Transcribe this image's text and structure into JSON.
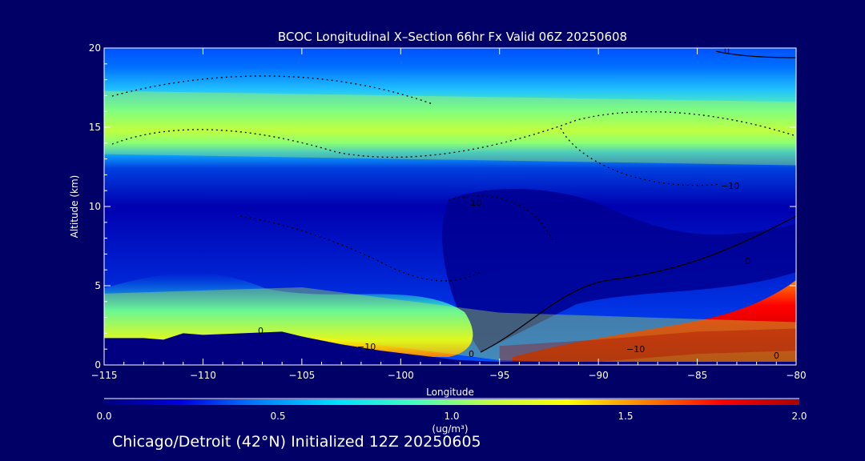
{
  "chart_data": {
    "type": "heatmap",
    "title": "BCOC Longitudinal X–Section 66hr  Fx Valid 06Z 20250608",
    "xlabel": "Longitude",
    "ylabel": "Altitude (km)",
    "xlim": [
      -115,
      -80
    ],
    "ylim": [
      0,
      20
    ],
    "x_ticks": [
      -115,
      -110,
      -105,
      -100,
      -95,
      -90,
      -85,
      -80
    ],
    "x_tick_labels": [
      "−115",
      "−110",
      "−105",
      "−100",
      "−95",
      "−90",
      "−85",
      "−80"
    ],
    "y_ticks": [
      0,
      5,
      10,
      15,
      20
    ],
    "y_tick_labels": [
      "0",
      "5",
      "10",
      "15",
      "20"
    ],
    "colorbar": {
      "min": 0.0,
      "max": 2.0,
      "ticks": [
        0.0,
        0.5,
        1.0,
        1.5,
        2.0
      ],
      "tick_labels": [
        "0.0",
        "0.5",
        "1.0",
        "1.5",
        "2.0"
      ],
      "units_label": "(ug/m³)",
      "colors": [
        "#000080",
        "#0000e0",
        "#0080ff",
        "#00e0ff",
        "#40ffc0",
        "#c0ff40",
        "#ffff00",
        "#ff8000",
        "#ff0000",
        "#aa0000"
      ]
    },
    "terrain_km": [
      {
        "x": -115,
        "y": 1.7
      },
      {
        "x": -113,
        "y": 1.7
      },
      {
        "x": -112,
        "y": 1.6
      },
      {
        "x": -111,
        "y": 2.0
      },
      {
        "x": -110,
        "y": 1.9
      },
      {
        "x": -108,
        "y": 2.0
      },
      {
        "x": -106,
        "y": 2.1
      },
      {
        "x": -105,
        "y": 1.8
      },
      {
        "x": -103,
        "y": 1.3
      },
      {
        "x": -101,
        "y": 0.9
      },
      {
        "x": -99,
        "y": 0.6
      },
      {
        "x": -97,
        "y": 0.3
      },
      {
        "x": -95,
        "y": 0.2
      },
      {
        "x": -93,
        "y": 0.2
      },
      {
        "x": -80,
        "y": 0.2
      }
    ],
    "bands": [
      {
        "x": [
          -115,
          -80
        ],
        "y": [
          15.3,
          14.6
        ],
        "half_width_km": 2.0,
        "value": 1.05
      },
      {
        "x": [
          -115,
          -105,
          -95,
          -80
        ],
        "y": [
          3.0,
          3.4,
          1.8,
          1.2
        ],
        "half_width_km": 1.5,
        "value": 1.1
      },
      {
        "x": [
          -95,
          -90,
          -85,
          -80
        ],
        "y": [
          0.5,
          0.9,
          1.4,
          1.6
        ],
        "half_width_km": 0.7,
        "value": 1.9
      }
    ],
    "contour_labels": [
      "0",
      "−10",
      "−10",
      "−10",
      "−10",
      "0",
      "0",
      "0",
      "0"
    ]
  },
  "footer": {
    "text": "Chicago/Detroit (42°N) Initialized 12Z 20250605"
  }
}
